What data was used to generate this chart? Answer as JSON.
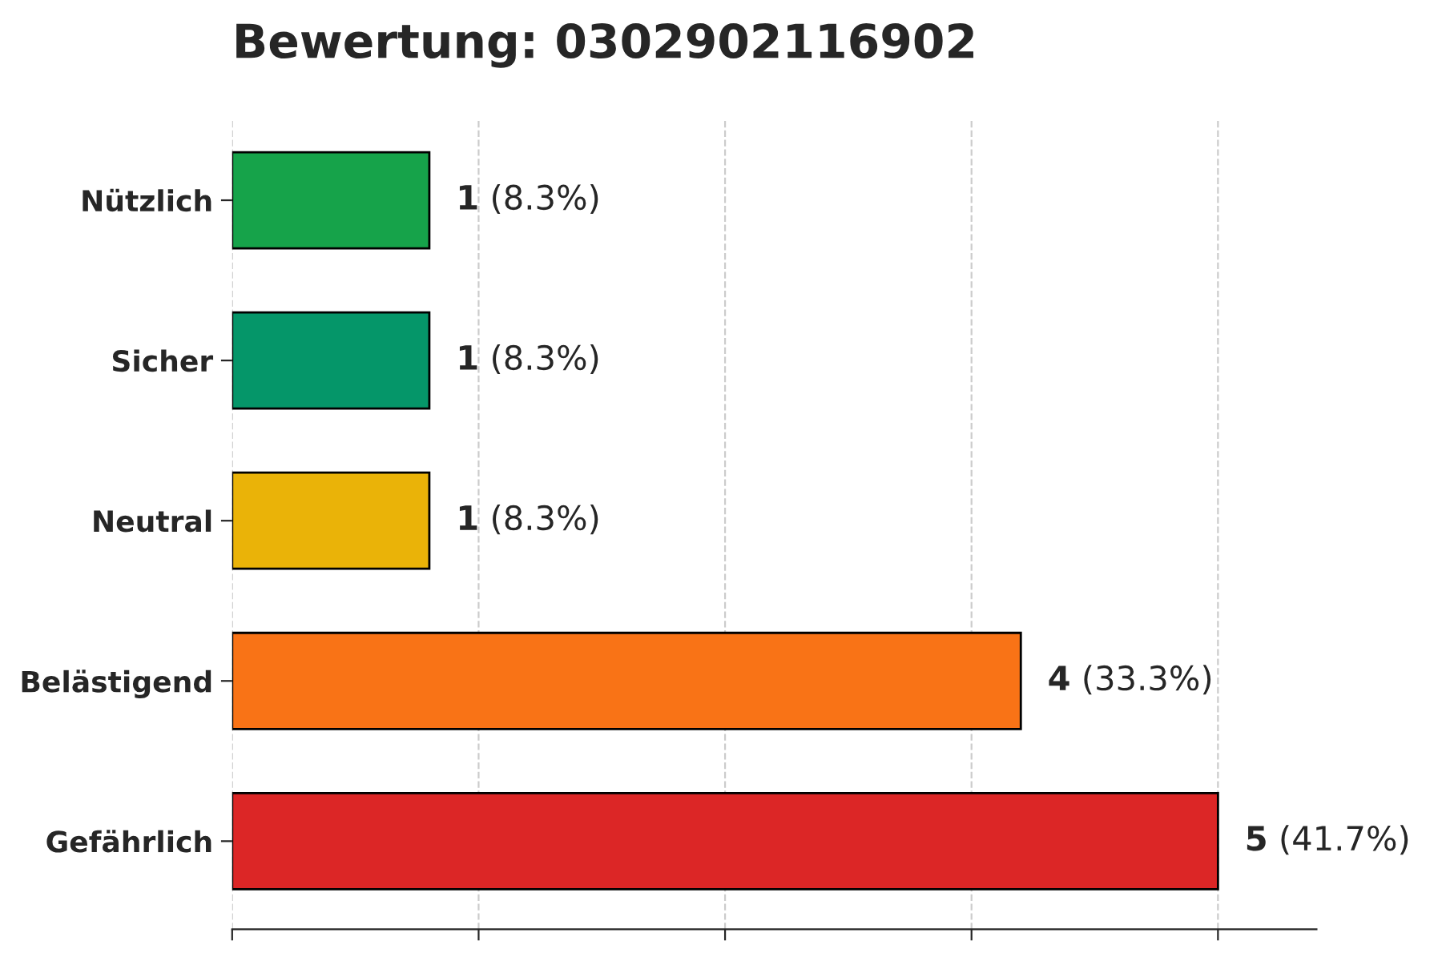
{
  "chart_data": {
    "type": "bar",
    "orientation": "horizontal",
    "title": "Bewertung: 0302902116902",
    "categories": [
      "Nützlich",
      "Sicher",
      "Neutral",
      "Belästigend",
      "Gefährlich"
    ],
    "values": [
      1,
      1,
      1,
      4,
      5
    ],
    "colors": [
      "#16a34a",
      "#059669",
      "#eab308",
      "#f97316",
      "#dc2626"
    ],
    "value_labels": [
      "1 (8.3%)",
      "1 (8.3%)",
      "1 (8.3%)",
      "4 (33.3%)",
      "5 (41.7%)"
    ],
    "xlim": [
      0,
      5.5
    ],
    "xticks": [
      {
        "value": 0,
        "label": null
      },
      {
        "value": 1.25,
        "label": null
      },
      {
        "value": 2.5,
        "label": null
      },
      {
        "value": 3.75,
        "label": null
      },
      {
        "value": 5,
        "label": null
      }
    ],
    "tick_labels": "y",
    "grid": "x",
    "legend": false
  }
}
